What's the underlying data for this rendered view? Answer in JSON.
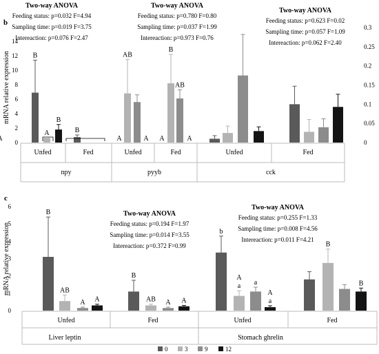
{
  "colors": {
    "0": "#5a5a5a",
    "3": "#b3b3b3",
    "9": "#8c8c8c",
    "12": "#141414"
  },
  "legend": {
    "labels": [
      "0",
      "3",
      "9",
      "12"
    ],
    "placement": "bottom-right"
  },
  "panel_b": {
    "label": "b",
    "ylabel": "mRNA relative expression",
    "left_ticks": [
      "0",
      "2",
      "4",
      "6",
      "8",
      "10",
      "12",
      "14"
    ],
    "right_ticks": [
      "0",
      "0.05",
      "0.1",
      "0.15",
      "0.2",
      "0.25",
      "0.3"
    ],
    "groups": [
      "npy",
      "pyyb",
      "cck"
    ],
    "anova": [
      {
        "title": "Two-way ANOVA",
        "lines": [
          "Feeding status: p=0.032 F=4.94",
          "Sampling time: p=0.019 F=3.75",
          "Intereaction: p=0.076 F=2.47"
        ]
      },
      {
        "title": "Two-way ANOVA",
        "lines": [
          "Feeding status: p=0.780 F=0.80",
          "Sampling time: p=0.037 F=1.99",
          "Intereaction: p=0.973 F=0.76"
        ]
      },
      {
        "title": "Two-way ANOVA",
        "lines": [
          "Feeding status: p=0.623 F=0.02",
          "Sampling time: p=0.057 F=1.09",
          "Intereaction: p=0.062 F=2.40"
        ]
      }
    ]
  },
  "panel_c": {
    "label": "c",
    "ylabel": "mRNA relative expression",
    "ticks": [
      "0",
      "1",
      "2",
      "3",
      "4",
      "5",
      "6"
    ],
    "groups": [
      "Liver leptin",
      "Stomach ghrelin"
    ],
    "anova": [
      {
        "title": "Two-way ANOVA",
        "lines": [
          "Feeding status: p=0.194 F=1.97",
          "Sampling time: p=0.014 F=3.55",
          "Intereaction: p=0.372 F=0.99"
        ]
      },
      {
        "title": "Two-way ANOVA",
        "lines": [
          "Feeding status: p=0.255 F=1.33",
          "Sampling time: p=0.008 F=4.56",
          "Intereaction: p=0.011 F=4.21"
        ]
      }
    ]
  },
  "chart_data": [
    {
      "type": "bar",
      "panel": "b",
      "ylabel": "mRNA relative expression",
      "ylim": [
        0,
        14
      ],
      "y2lim": [
        0,
        0.3
      ],
      "legend": [
        "0",
        "3",
        "9",
        "12"
      ],
      "clusters": [
        {
          "group": "npy",
          "condition": "Unfed",
          "axis": "left",
          "values": [
            6.9,
            0.65,
            1.8
          ],
          "errors": [
            4.5,
            0,
            0.7
          ],
          "letters": [
            "B",
            "A",
            "B"
          ]
        },
        {
          "group": "npy",
          "condition": "Fed",
          "axis": "left",
          "values": [
            0.75,
            0,
            0
          ],
          "errors": [
            0.3,
            0,
            0
          ],
          "letters": [
            "B",
            "A",
            ""
          ]
        },
        {
          "group": "pyyb",
          "condition": "Unfed",
          "axis": "left",
          "values": [
            0,
            6.8,
            5.6
          ],
          "errors": [
            0,
            4.7,
            1.0
          ],
          "letters": [
            "A",
            "AB",
            ""
          ]
        },
        {
          "group": "pyyb",
          "condition": "Unfed",
          "axis": "left",
          "values": [
            0
          ],
          "errors": [
            0
          ],
          "letters": [
            "A"
          ]
        },
        {
          "group": "pyyb",
          "condition": "Fed",
          "axis": "left",
          "values": [
            0,
            8.2,
            6.1
          ],
          "errors": [
            0,
            4.0,
            1.2
          ],
          "letters": [
            "A",
            "B",
            "AB"
          ]
        },
        {
          "group": "pyyb",
          "condition": "Fed",
          "axis": "left",
          "values": [
            0
          ],
          "errors": [
            0
          ],
          "letters": [
            "A"
          ]
        },
        {
          "group": "cck",
          "condition": "Unfed",
          "axis": "right",
          "values": [
            0.01,
            0.025,
            0.175,
            0.03
          ],
          "errors": [
            0.008,
            0.018,
            0.107,
            0.011
          ],
          "letters": [
            "",
            "",
            "",
            ""
          ]
        },
        {
          "group": "cck",
          "condition": "Fed",
          "axis": "right",
          "values": [
            0.1,
            0.028,
            0.04,
            0.093
          ],
          "errors": [
            0.047,
            0.032,
            0.022,
            0.033
          ],
          "letters": [
            "",
            "",
            "",
            ""
          ]
        }
      ]
    },
    {
      "type": "bar",
      "panel": "c",
      "ylabel": "mRNA relative expression",
      "ylim": [
        0,
        6
      ],
      "legend": [
        "0",
        "3",
        "9",
        "12"
      ],
      "clusters": [
        {
          "group": "Liver leptin",
          "condition": "Unfed",
          "values": [
            3.1,
            0.55,
            0.15,
            0.3
          ],
          "errors": [
            2.3,
            0.35,
            0.05,
            0.07
          ],
          "letters": [
            "B",
            "AB",
            "A",
            "A"
          ]
        },
        {
          "group": "Liver leptin",
          "condition": "Fed",
          "values": [
            1.1,
            0.3,
            0.15,
            0.25
          ],
          "errors": [
            0.65,
            0.07,
            0.05,
            0.05
          ],
          "letters": [
            "B",
            "AB",
            "A",
            "A"
          ]
        },
        {
          "group": "Stomach ghrelin",
          "condition": "Unfed",
          "values": [
            3.35,
            0.85,
            1.1,
            0.2
          ],
          "errors": [
            0.95,
            0.3,
            0.25,
            0.08
          ],
          "letters": [
            "b",
            "a",
            "a",
            "a"
          ],
          "letters2": [
            "",
            "A",
            "",
            "A"
          ]
        },
        {
          "group": "Stomach ghrelin",
          "condition": "Fed",
          "values": [
            1.8,
            2.75,
            1.25,
            1.1
          ],
          "errors": [
            0.45,
            0.8,
            0.25,
            0.2
          ],
          "letters": [
            "",
            "B",
            "",
            "B"
          ]
        }
      ]
    }
  ]
}
